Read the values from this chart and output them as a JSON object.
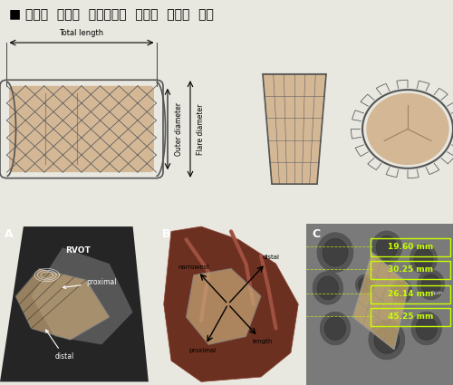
{
  "title": "■ 차세대  판막이  폐동맥판막  부위에  이식된  사진",
  "title_fontsize": 10,
  "background_color": "#f0f0f0",
  "top_bg": "#f5f5f0",
  "bottom_bg": "#000000",
  "panel_A_label": "A",
  "panel_B_label": "B",
  "panel_C_label": "C",
  "panel_A_text": [
    "RVOT",
    "proximal",
    "distal"
  ],
  "panel_B_text": [
    "distal",
    "narrowest",
    "proximal",
    "length"
  ],
  "panel_C_measurements": [
    "19.60 mm",
    "30.25 mm",
    "26.14 mm",
    "45.25 mm"
  ],
  "top_annotations": [
    "Total length",
    "Outer diameter",
    "Flare diameter"
  ],
  "measurement_color": "#c8ff00",
  "label_color": "#ffffff"
}
